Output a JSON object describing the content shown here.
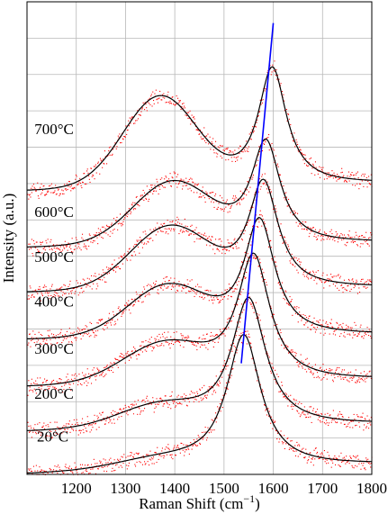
{
  "chart_data": {
    "type": "line",
    "title": "",
    "xlabel": "Raman Shift (cm",
    "xlabel_sup": "−1",
    "xlabel_tail": ")",
    "ylabel": "Intensity (a.u.)",
    "xlim": [
      1100,
      1800
    ],
    "ylim": [
      0,
      1
    ],
    "x_ticks": [
      1200,
      1300,
      1400,
      1500,
      1600,
      1700,
      1800
    ],
    "grid": true,
    "colors": {
      "fit": "#000000",
      "data": "#ff0000",
      "trend": "#0000ff"
    },
    "series": [
      {
        "name": "20°C",
        "offset": 0.0,
        "g_peak": 1540,
        "g_width": 42,
        "g_amp": 0.28,
        "d_peak": 1370,
        "d_width": 90,
        "d_amp": 0.02,
        "base": 0.0,
        "tail": 0.02
      },
      {
        "name": "200°C",
        "offset": 0.09,
        "g_peak": 1550,
        "g_width": 42,
        "g_amp": 0.27,
        "d_peak": 1370,
        "d_width": 85,
        "d_amp": 0.045,
        "base": 0.0,
        "tail": 0.015
      },
      {
        "name": "300°C",
        "offset": 0.185,
        "g_peak": 1560,
        "g_width": 40,
        "g_amp": 0.265,
        "d_peak": 1380,
        "d_width": 85,
        "d_amp": 0.08,
        "base": 0.0,
        "tail": 0.015
      },
      {
        "name": "400°C",
        "offset": 0.285,
        "g_peak": 1572,
        "g_width": 38,
        "g_amp": 0.245,
        "d_peak": 1385,
        "d_width": 80,
        "d_amp": 0.105,
        "base": 0.0,
        "tail": 0.01
      },
      {
        "name": "500°C",
        "offset": 0.385,
        "g_peak": 1580,
        "g_width": 37,
        "g_amp": 0.225,
        "d_peak": 1390,
        "d_width": 80,
        "d_amp": 0.13,
        "base": 0.0,
        "tail": 0.01
      },
      {
        "name": "600°C",
        "offset": 0.48,
        "g_peak": 1585,
        "g_width": 36,
        "g_amp": 0.215,
        "d_peak": 1395,
        "d_width": 80,
        "d_amp": 0.13,
        "base": 0.0,
        "tail": 0.01
      },
      {
        "name": "700°C",
        "offset": 0.6,
        "g_peak": 1598,
        "g_width": 35,
        "g_amp": 0.25,
        "d_peak": 1370,
        "d_width": 75,
        "d_amp": 0.19,
        "base": 0.0,
        "tail": 0.015
      }
    ],
    "trend_line": {
      "x": [
        1535,
        1600
      ],
      "y": [
        0.235,
        0.955
      ]
    }
  }
}
